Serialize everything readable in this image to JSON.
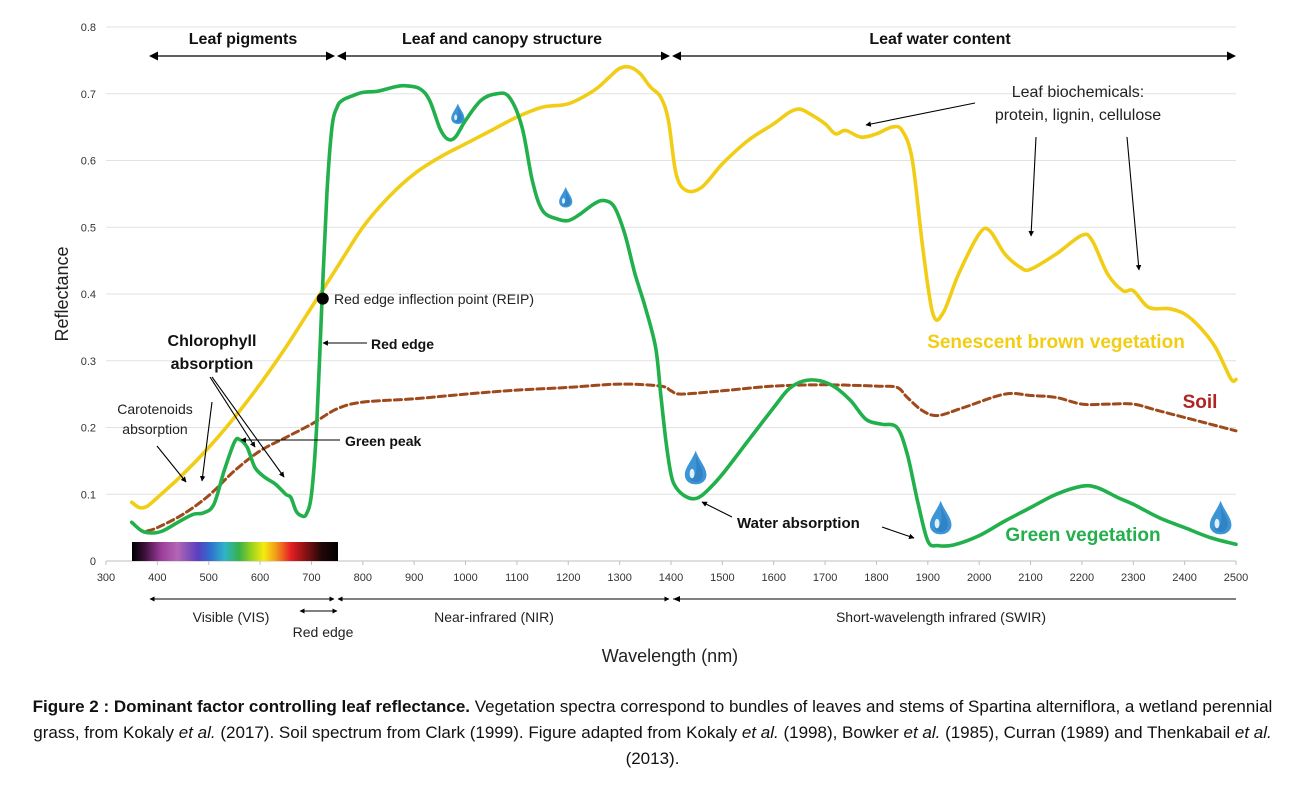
{
  "chart_data": {
    "type": "line",
    "title": "",
    "xlabel": "Wavelength (nm)",
    "ylabel": "Reflectance",
    "xlim": [
      300,
      2500
    ],
    "ylim": [
      0,
      0.8
    ],
    "x_ticks": [
      300,
      400,
      500,
      600,
      700,
      800,
      900,
      1000,
      1100,
      1200,
      1300,
      1400,
      1500,
      1600,
      1700,
      1800,
      1900,
      2000,
      2100,
      2200,
      2300,
      2400,
      2500
    ],
    "y_ticks": [
      0,
      0.1,
      0.2,
      0.3,
      0.4,
      0.5,
      0.6,
      0.7,
      0.8
    ],
    "grid": true,
    "series": [
      {
        "name": "Green vegetation",
        "color": "#21b04b",
        "style": "solid",
        "points": [
          [
            350,
            0.058
          ],
          [
            370,
            0.045
          ],
          [
            390,
            0.042
          ],
          [
            410,
            0.045
          ],
          [
            440,
            0.058
          ],
          [
            470,
            0.07
          ],
          [
            490,
            0.072
          ],
          [
            510,
            0.085
          ],
          [
            530,
            0.135
          ],
          [
            550,
            0.178
          ],
          [
            560,
            0.182
          ],
          [
            575,
            0.17
          ],
          [
            590,
            0.14
          ],
          [
            610,
            0.125
          ],
          [
            630,
            0.115
          ],
          [
            650,
            0.1
          ],
          [
            660,
            0.095
          ],
          [
            670,
            0.075
          ],
          [
            680,
            0.068
          ],
          [
            690,
            0.07
          ],
          [
            700,
            0.1
          ],
          [
            710,
            0.2
          ],
          [
            720,
            0.38
          ],
          [
            730,
            0.55
          ],
          [
            740,
            0.65
          ],
          [
            750,
            0.68
          ],
          [
            760,
            0.69
          ],
          [
            780,
            0.697
          ],
          [
            800,
            0.702
          ],
          [
            830,
            0.704
          ],
          [
            860,
            0.71
          ],
          [
            880,
            0.712
          ],
          [
            910,
            0.708
          ],
          [
            930,
            0.69
          ],
          [
            950,
            0.648
          ],
          [
            965,
            0.632
          ],
          [
            980,
            0.635
          ],
          [
            1000,
            0.66
          ],
          [
            1030,
            0.69
          ],
          [
            1060,
            0.7
          ],
          [
            1085,
            0.695
          ],
          [
            1110,
            0.65
          ],
          [
            1130,
            0.57
          ],
          [
            1150,
            0.525
          ],
          [
            1180,
            0.512
          ],
          [
            1200,
            0.51
          ],
          [
            1220,
            0.518
          ],
          [
            1250,
            0.535
          ],
          [
            1270,
            0.54
          ],
          [
            1290,
            0.53
          ],
          [
            1310,
            0.49
          ],
          [
            1330,
            0.43
          ],
          [
            1350,
            0.38
          ],
          [
            1370,
            0.32
          ],
          [
            1380,
            0.25
          ],
          [
            1390,
            0.18
          ],
          [
            1400,
            0.13
          ],
          [
            1410,
            0.11
          ],
          [
            1430,
            0.096
          ],
          [
            1450,
            0.094
          ],
          [
            1470,
            0.105
          ],
          [
            1500,
            0.13
          ],
          [
            1550,
            0.18
          ],
          [
            1600,
            0.23
          ],
          [
            1630,
            0.258
          ],
          [
            1660,
            0.27
          ],
          [
            1690,
            0.27
          ],
          [
            1720,
            0.26
          ],
          [
            1750,
            0.24
          ],
          [
            1780,
            0.212
          ],
          [
            1810,
            0.205
          ],
          [
            1840,
            0.2
          ],
          [
            1860,
            0.16
          ],
          [
            1880,
            0.09
          ],
          [
            1900,
            0.03
          ],
          [
            1920,
            0.023
          ],
          [
            1950,
            0.024
          ],
          [
            2000,
            0.038
          ],
          [
            2050,
            0.06
          ],
          [
            2100,
            0.08
          ],
          [
            2150,
            0.1
          ],
          [
            2200,
            0.112
          ],
          [
            2230,
            0.11
          ],
          [
            2270,
            0.095
          ],
          [
            2300,
            0.085
          ],
          [
            2350,
            0.065
          ],
          [
            2400,
            0.05
          ],
          [
            2450,
            0.035
          ],
          [
            2500,
            0.025
          ]
        ]
      },
      {
        "name": "Senescent brown vegetation",
        "color": "#f2cd15",
        "style": "solid",
        "points": [
          [
            350,
            0.088
          ],
          [
            365,
            0.08
          ],
          [
            380,
            0.082
          ],
          [
            400,
            0.095
          ],
          [
            450,
            0.13
          ],
          [
            500,
            0.17
          ],
          [
            550,
            0.215
          ],
          [
            600,
            0.265
          ],
          [
            650,
            0.32
          ],
          [
            700,
            0.38
          ],
          [
            750,
            0.44
          ],
          [
            800,
            0.5
          ],
          [
            850,
            0.545
          ],
          [
            900,
            0.58
          ],
          [
            950,
            0.605
          ],
          [
            1000,
            0.625
          ],
          [
            1050,
            0.645
          ],
          [
            1100,
            0.665
          ],
          [
            1150,
            0.68
          ],
          [
            1200,
            0.685
          ],
          [
            1250,
            0.705
          ],
          [
            1280,
            0.725
          ],
          [
            1300,
            0.738
          ],
          [
            1320,
            0.74
          ],
          [
            1340,
            0.73
          ],
          [
            1360,
            0.71
          ],
          [
            1380,
            0.695
          ],
          [
            1395,
            0.66
          ],
          [
            1410,
            0.58
          ],
          [
            1430,
            0.555
          ],
          [
            1460,
            0.56
          ],
          [
            1500,
            0.595
          ],
          [
            1550,
            0.63
          ],
          [
            1600,
            0.655
          ],
          [
            1630,
            0.672
          ],
          [
            1650,
            0.677
          ],
          [
            1670,
            0.67
          ],
          [
            1700,
            0.655
          ],
          [
            1720,
            0.64
          ],
          [
            1740,
            0.645
          ],
          [
            1770,
            0.635
          ],
          [
            1800,
            0.64
          ],
          [
            1830,
            0.65
          ],
          [
            1850,
            0.645
          ],
          [
            1870,
            0.6
          ],
          [
            1890,
            0.47
          ],
          [
            1910,
            0.37
          ],
          [
            1930,
            0.372
          ],
          [
            1960,
            0.43
          ],
          [
            2000,
            0.49
          ],
          [
            2020,
            0.495
          ],
          [
            2050,
            0.46
          ],
          [
            2080,
            0.44
          ],
          [
            2100,
            0.437
          ],
          [
            2150,
            0.46
          ],
          [
            2200,
            0.488
          ],
          [
            2220,
            0.48
          ],
          [
            2250,
            0.43
          ],
          [
            2280,
            0.405
          ],
          [
            2300,
            0.405
          ],
          [
            2330,
            0.38
          ],
          [
            2370,
            0.378
          ],
          [
            2400,
            0.37
          ],
          [
            2430,
            0.35
          ],
          [
            2460,
            0.32
          ],
          [
            2490,
            0.273
          ],
          [
            2500,
            0.272
          ]
        ]
      },
      {
        "name": "Soil",
        "color": "#9e4a1c",
        "style": "dashed",
        "points": [
          [
            380,
            0.045
          ],
          [
            400,
            0.05
          ],
          [
            450,
            0.07
          ],
          [
            500,
            0.098
          ],
          [
            550,
            0.135
          ],
          [
            600,
            0.165
          ],
          [
            650,
            0.185
          ],
          [
            700,
            0.205
          ],
          [
            750,
            0.228
          ],
          [
            800,
            0.238
          ],
          [
            900,
            0.243
          ],
          [
            1000,
            0.25
          ],
          [
            1100,
            0.256
          ],
          [
            1200,
            0.26
          ],
          [
            1300,
            0.265
          ],
          [
            1380,
            0.262
          ],
          [
            1400,
            0.255
          ],
          [
            1420,
            0.25
          ],
          [
            1500,
            0.255
          ],
          [
            1600,
            0.262
          ],
          [
            1700,
            0.264
          ],
          [
            1800,
            0.262
          ],
          [
            1840,
            0.26
          ],
          [
            1860,
            0.245
          ],
          [
            1890,
            0.225
          ],
          [
            1920,
            0.218
          ],
          [
            1970,
            0.23
          ],
          [
            2050,
            0.25
          ],
          [
            2100,
            0.248
          ],
          [
            2150,
            0.245
          ],
          [
            2200,
            0.235
          ],
          [
            2250,
            0.235
          ],
          [
            2300,
            0.235
          ],
          [
            2350,
            0.225
          ],
          [
            2400,
            0.215
          ],
          [
            2450,
            0.205
          ],
          [
            2500,
            0.195
          ]
        ]
      }
    ],
    "series_labels": [
      "Senescent brown vegetation",
      "Soil",
      "Green vegetation"
    ],
    "regions_top": [
      "Leaf pigments",
      "Leaf and canopy structure",
      "Leaf water content"
    ],
    "regions_bottom": [
      "Visible (VIS)",
      "Red edge",
      "Near-infrared (NIR)",
      "Short-wavelength infrared (SWIR)"
    ],
    "annotations": {
      "biochem_1": "Leaf biochemicals:",
      "biochem_2": "protein, lignin, cellulose",
      "reip": "Red edge inflection point (REIP)",
      "red_edge": "Red edge",
      "chloro_1": "Chlorophyll",
      "chloro_2": "absorption",
      "carot_1": "Carotenoids",
      "carot_2": "absorption",
      "green_peak": "Green peak",
      "water_abs": "Water absorption"
    },
    "reip_point": [
      722,
      0.393
    ],
    "water_drops": [
      [
        985,
        0.67
      ],
      [
        1195,
        0.545
      ],
      [
        1448,
        0.14
      ],
      [
        1925,
        0.065
      ],
      [
        2470,
        0.065
      ]
    ]
  },
  "caption": {
    "bold": "Figure 2 : Dominant factor controlling leaf reflectance.",
    "p1": " Vegetation spectra correspond to bundles of leaves and stems of Spartina alterniflora, a wetland perennial grass, from Kokaly ",
    "etal1": "et al.",
    "p2": " (2017). Soil spectrum from Clark (1999). Figure adapted from Kokaly ",
    "etal2": "et al.",
    "p3": " (1998), Bowker ",
    "etal3": "et al.",
    "p4": " (1985), Curran (1989) and Thenkabail ",
    "etal4": "et al.",
    "p5": " (2013)."
  }
}
